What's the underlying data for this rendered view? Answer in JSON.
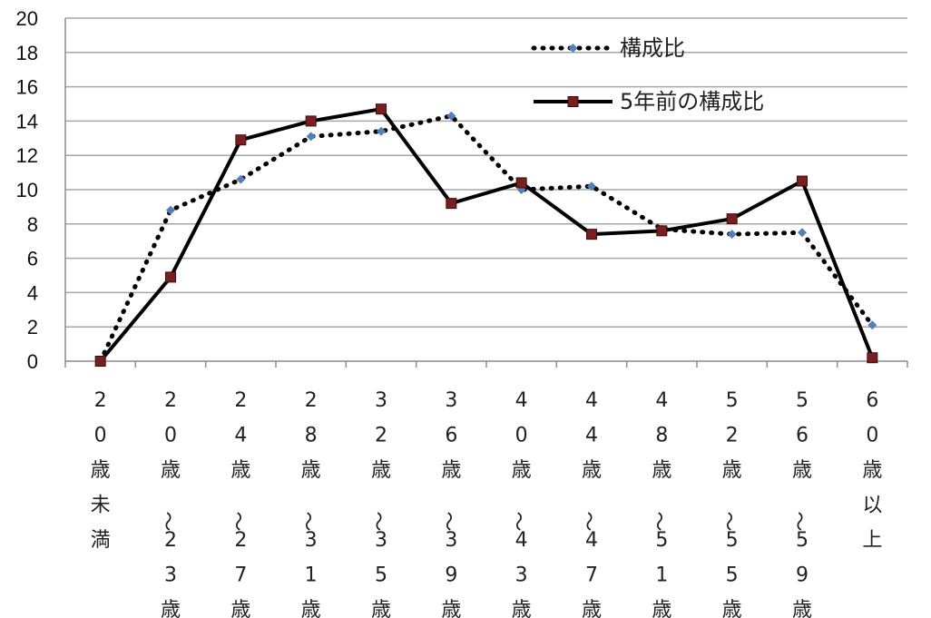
{
  "chart_data": {
    "type": "line",
    "title": "",
    "xlabel": "",
    "ylabel": "",
    "ylim": [
      0,
      20
    ],
    "ytick_step": 2,
    "grid": true,
    "legend_position": "top-right",
    "categories": [
      "20歳未満",
      "20歳〜23歳",
      "24歳〜27歳",
      "28歳〜31歳",
      "32歳〜35歳",
      "36歳〜39歳",
      "40歳〜43歳",
      "44歳〜47歳",
      "48歳〜51歳",
      "52歳〜55歳",
      "56歳〜59歳",
      "60歳以上"
    ],
    "category_chars": [
      [
        "2",
        "0",
        "歳",
        "未",
        "満"
      ],
      [
        "2",
        "0",
        "歳",
        "〜",
        "2",
        "3",
        "歳"
      ],
      [
        "2",
        "4",
        "歳",
        "〜",
        "2",
        "7",
        "歳"
      ],
      [
        "2",
        "8",
        "歳",
        "〜",
        "3",
        "1",
        "歳"
      ],
      [
        "3",
        "2",
        "歳",
        "〜",
        "3",
        "5",
        "歳"
      ],
      [
        "3",
        "6",
        "歳",
        "〜",
        "3",
        "9",
        "歳"
      ],
      [
        "4",
        "0",
        "歳",
        "〜",
        "4",
        "3",
        "歳"
      ],
      [
        "4",
        "4",
        "歳",
        "〜",
        "4",
        "7",
        "歳"
      ],
      [
        "4",
        "8",
        "歳",
        "〜",
        "5",
        "1",
        "歳"
      ],
      [
        "5",
        "2",
        "歳",
        "〜",
        "5",
        "5",
        "歳"
      ],
      [
        "5",
        "6",
        "歳",
        "〜",
        "5",
        "9",
        "歳"
      ],
      [
        "6",
        "0",
        "歳",
        "以",
        "上"
      ]
    ],
    "series": [
      {
        "name": "構成比",
        "style": "dotted",
        "color": "#000000",
        "marker": "diamond",
        "marker_color": "#4f81bd",
        "values": [
          0,
          8.8,
          10.6,
          13.1,
          13.4,
          14.3,
          10.0,
          10.2,
          7.7,
          7.4,
          7.5,
          2.1
        ]
      },
      {
        "name": "5年前の構成比",
        "style": "solid",
        "color": "#000000",
        "marker": "square",
        "marker_color": "#7b1e1e",
        "values": [
          0,
          4.9,
          12.9,
          14.0,
          14.7,
          9.2,
          10.4,
          7.4,
          7.6,
          8.3,
          10.5,
          0.2
        ]
      }
    ]
  }
}
